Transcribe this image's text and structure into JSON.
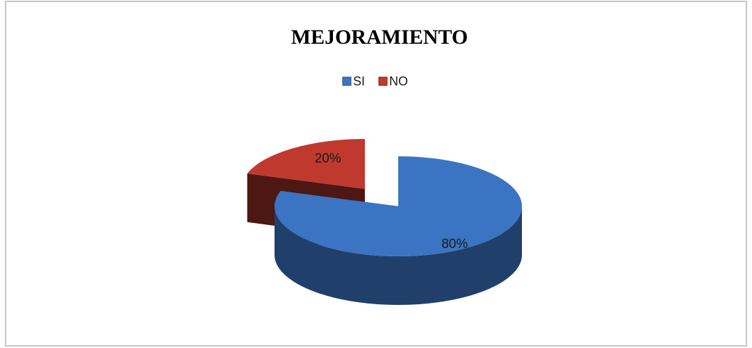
{
  "chart_data": {
    "type": "pie",
    "title": "MEJORAMIENTO",
    "categories": [
      "SI",
      "NO"
    ],
    "values": [
      80,
      20
    ],
    "value_labels": [
      "80%",
      "20%"
    ],
    "colors": [
      "#3b74c2",
      "#c0392f"
    ],
    "legend": "top"
  }
}
